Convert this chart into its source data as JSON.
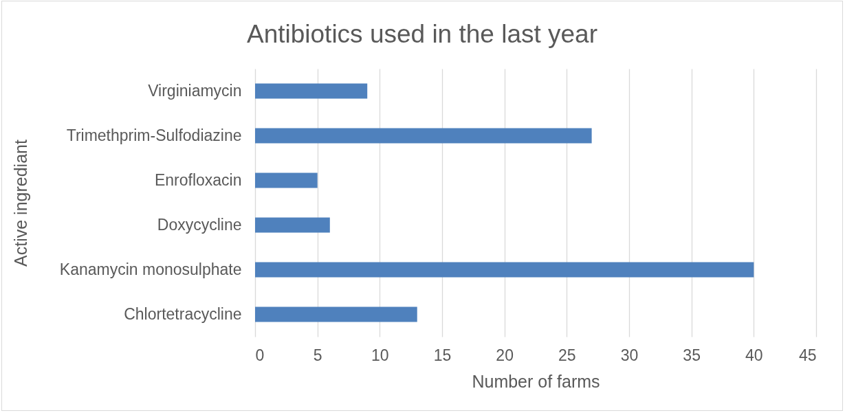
{
  "chart_data": {
    "type": "bar",
    "orientation": "horizontal",
    "title": "Antibiotics used in the last year",
    "xlabel": "Number of farms",
    "ylabel": "Active ingrediant",
    "categories": [
      "Virginiamycin",
      "Trimethprim-Sulfodiazine",
      "Enrofloxacin",
      "Doxycycline",
      "Kanamycin monosulphate",
      "Chlortetracycline"
    ],
    "values": [
      9,
      27,
      5,
      6,
      40,
      13
    ],
    "color": "#4f81bd",
    "xlim": [
      0,
      45
    ],
    "xticks": [
      0,
      5,
      10,
      15,
      20,
      25,
      30,
      35,
      40,
      45
    ],
    "grid": "x"
  }
}
